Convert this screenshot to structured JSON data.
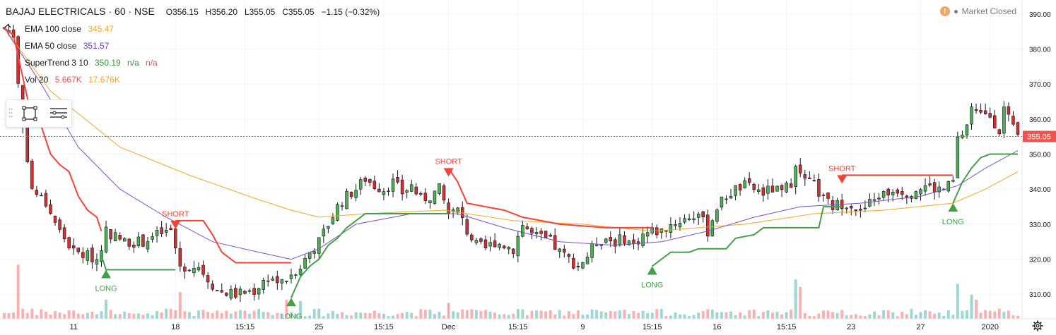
{
  "header": {
    "symbol": "BAJAJ ELECTRICALS · 60 · NSE",
    "open": "O356.15",
    "high": "H356.20",
    "low": "L355.05",
    "close": "C355.05",
    "change": "−1.15 (−0.32%)"
  },
  "indicators": [
    {
      "label": "EMA 100 close",
      "v1": "345.47",
      "v2": "",
      "v3": "",
      "c1": "#f5a623"
    },
    {
      "label": "EMA 50 close",
      "v1": "351.57",
      "v2": "",
      "v3": "",
      "c1": "#6a3fb5"
    },
    {
      "label": "SuperTrend 3 10",
      "v1": "350.19",
      "v2": "n/a",
      "v3": "n/a",
      "c1": "#2e9b2e"
    },
    {
      "label": "Vol 20",
      "v1": "5.667K",
      "v2": "17.676K",
      "v3": "",
      "c1": "#ef5350"
    }
  ],
  "market_status": {
    "warning_glyph": "!",
    "text": "Market Closed"
  },
  "icons": {
    "collapse": "chevron-up-icon",
    "rect": "rectangle-tool-icon",
    "settings": "object-tree-icon",
    "gear": "gear-icon"
  },
  "colors": {
    "up": "#26a69a",
    "down": "#ef5350",
    "candle_up": "#4caf50",
    "candle_down": "#d32f2f",
    "ema100": "#f5a623",
    "ema50": "#7b52c1",
    "st_long": "#43a047",
    "st_short": "#f44336",
    "price_tag": "#ef5350",
    "grid": "#f0f3fa"
  },
  "chart_data": {
    "type": "line",
    "title": "BAJAJ ELECTRICALS · 60 · NSE",
    "xlabel": "",
    "ylabel": "",
    "ylim": [
      303,
      394
    ],
    "y_ticks": [
      "390.00",
      "380.00",
      "370.00",
      "360.00",
      "350.00",
      "340.00",
      "330.00",
      "320.00",
      "310.00"
    ],
    "y_tick_values": [
      390,
      380,
      370,
      360,
      350,
      340,
      330,
      320,
      310
    ],
    "last_price_label": "355.05",
    "last_price": 355.05,
    "x_count": 220,
    "x_ticks": [
      {
        "i": 15,
        "label": "11"
      },
      {
        "i": 37,
        "label": "18"
      },
      {
        "i": 52,
        "label": "15:15"
      },
      {
        "i": 68,
        "label": "25"
      },
      {
        "i": 82,
        "label": "15:15"
      },
      {
        "i": 96,
        "label": "Dec"
      },
      {
        "i": 111,
        "label": "15:15"
      },
      {
        "i": 125,
        "label": "9"
      },
      {
        "i": 140,
        "label": "15:15"
      },
      {
        "i": 154,
        "label": "16"
      },
      {
        "i": 169,
        "label": "15:15"
      },
      {
        "i": 183,
        "label": "23"
      },
      {
        "i": 198,
        "label": "27"
      },
      {
        "i": 213,
        "label": "2020"
      }
    ],
    "close_path": [
      {
        "i": 0,
        "v": 386
      },
      {
        "i": 2,
        "v": 384
      },
      {
        "i": 4,
        "v": 358
      },
      {
        "i": 6,
        "v": 340
      },
      {
        "i": 9,
        "v": 336
      },
      {
        "i": 12,
        "v": 328
      },
      {
        "i": 15,
        "v": 322
      },
      {
        "i": 18,
        "v": 321
      },
      {
        "i": 20,
        "v": 320
      },
      {
        "i": 22,
        "v": 328
      },
      {
        "i": 26,
        "v": 325
      },
      {
        "i": 30,
        "v": 325
      },
      {
        "i": 33,
        "v": 327
      },
      {
        "i": 36,
        "v": 328
      },
      {
        "i": 38,
        "v": 318
      },
      {
        "i": 42,
        "v": 318
      },
      {
        "i": 46,
        "v": 311
      },
      {
        "i": 50,
        "v": 310
      },
      {
        "i": 54,
        "v": 311
      },
      {
        "i": 57,
        "v": 315
      },
      {
        "i": 60,
        "v": 313
      },
      {
        "i": 62,
        "v": 316
      },
      {
        "i": 64,
        "v": 318
      },
      {
        "i": 66,
        "v": 322
      },
      {
        "i": 68,
        "v": 325
      },
      {
        "i": 70,
        "v": 330
      },
      {
        "i": 72,
        "v": 335
      },
      {
        "i": 74,
        "v": 338
      },
      {
        "i": 76,
        "v": 340
      },
      {
        "i": 78,
        "v": 343
      },
      {
        "i": 80,
        "v": 341
      },
      {
        "i": 82,
        "v": 340
      },
      {
        "i": 84,
        "v": 342
      },
      {
        "i": 86,
        "v": 339
      },
      {
        "i": 88,
        "v": 341
      },
      {
        "i": 90,
        "v": 337
      },
      {
        "i": 92,
        "v": 338
      },
      {
        "i": 94,
        "v": 340
      },
      {
        "i": 96,
        "v": 333
      },
      {
        "i": 98,
        "v": 334
      },
      {
        "i": 100,
        "v": 328
      },
      {
        "i": 102,
        "v": 324
      },
      {
        "i": 104,
        "v": 323
      },
      {
        "i": 106,
        "v": 325
      },
      {
        "i": 108,
        "v": 324
      },
      {
        "i": 110,
        "v": 323
      },
      {
        "i": 112,
        "v": 330
      },
      {
        "i": 114,
        "v": 327
      },
      {
        "i": 116,
        "v": 326
      },
      {
        "i": 118,
        "v": 325
      },
      {
        "i": 120,
        "v": 322
      },
      {
        "i": 122,
        "v": 320
      },
      {
        "i": 124,
        "v": 318
      },
      {
        "i": 126,
        "v": 321
      },
      {
        "i": 128,
        "v": 325
      },
      {
        "i": 130,
        "v": 326
      },
      {
        "i": 132,
        "v": 325
      },
      {
        "i": 134,
        "v": 326
      },
      {
        "i": 136,
        "v": 324
      },
      {
        "i": 138,
        "v": 327
      },
      {
        "i": 140,
        "v": 328
      },
      {
        "i": 142,
        "v": 328
      },
      {
        "i": 144,
        "v": 330
      },
      {
        "i": 146,
        "v": 331
      },
      {
        "i": 148,
        "v": 332
      },
      {
        "i": 150,
        "v": 333
      },
      {
        "i": 152,
        "v": 328
      },
      {
        "i": 154,
        "v": 335
      },
      {
        "i": 156,
        "v": 338
      },
      {
        "i": 158,
        "v": 340
      },
      {
        "i": 160,
        "v": 341
      },
      {
        "i": 162,
        "v": 340
      },
      {
        "i": 164,
        "v": 339
      },
      {
        "i": 166,
        "v": 340
      },
      {
        "i": 168,
        "v": 339
      },
      {
        "i": 170,
        "v": 342
      },
      {
        "i": 171,
        "v": 348
      },
      {
        "i": 173,
        "v": 342
      },
      {
        "i": 175,
        "v": 341
      },
      {
        "i": 177,
        "v": 337
      },
      {
        "i": 179,
        "v": 335
      },
      {
        "i": 181,
        "v": 336
      },
      {
        "i": 183,
        "v": 336
      },
      {
        "i": 185,
        "v": 333
      },
      {
        "i": 187,
        "v": 336
      },
      {
        "i": 189,
        "v": 338
      },
      {
        "i": 191,
        "v": 339
      },
      {
        "i": 193,
        "v": 340
      },
      {
        "i": 195,
        "v": 339
      },
      {
        "i": 197,
        "v": 340
      },
      {
        "i": 199,
        "v": 341
      },
      {
        "i": 201,
        "v": 340
      },
      {
        "i": 203,
        "v": 340
      },
      {
        "i": 205,
        "v": 342
      },
      {
        "i": 206,
        "v": 354
      },
      {
        "i": 208,
        "v": 357
      },
      {
        "i": 209,
        "v": 362
      },
      {
        "i": 211,
        "v": 361
      },
      {
        "i": 213,
        "v": 361
      },
      {
        "i": 215,
        "v": 357
      },
      {
        "i": 216,
        "v": 363
      },
      {
        "i": 218,
        "v": 357
      },
      {
        "i": 219,
        "v": 355
      }
    ],
    "series": [
      {
        "name": "EMA 100 close",
        "key": "ema100",
        "points": [
          {
            "i": 0,
            "v": 386
          },
          {
            "i": 10,
            "v": 368
          },
          {
            "i": 25,
            "v": 352
          },
          {
            "i": 40,
            "v": 344
          },
          {
            "i": 55,
            "v": 337
          },
          {
            "i": 62,
            "v": 334
          },
          {
            "i": 68,
            "v": 332
          },
          {
            "i": 78,
            "v": 333
          },
          {
            "i": 95,
            "v": 334
          },
          {
            "i": 110,
            "v": 331
          },
          {
            "i": 125,
            "v": 330
          },
          {
            "i": 140,
            "v": 328
          },
          {
            "i": 150,
            "v": 329
          },
          {
            "i": 160,
            "v": 330
          },
          {
            "i": 175,
            "v": 333
          },
          {
            "i": 190,
            "v": 334
          },
          {
            "i": 205,
            "v": 336
          },
          {
            "i": 212,
            "v": 340
          },
          {
            "i": 219,
            "v": 345
          }
        ]
      },
      {
        "name": "EMA 50 close",
        "key": "ema50",
        "points": [
          {
            "i": 0,
            "v": 386
          },
          {
            "i": 8,
            "v": 370
          },
          {
            "i": 16,
            "v": 352
          },
          {
            "i": 25,
            "v": 340
          },
          {
            "i": 35,
            "v": 332
          },
          {
            "i": 45,
            "v": 325
          },
          {
            "i": 55,
            "v": 322
          },
          {
            "i": 62,
            "v": 320
          },
          {
            "i": 68,
            "v": 323
          },
          {
            "i": 76,
            "v": 330
          },
          {
            "i": 88,
            "v": 333
          },
          {
            "i": 98,
            "v": 333
          },
          {
            "i": 108,
            "v": 329
          },
          {
            "i": 120,
            "v": 325
          },
          {
            "i": 132,
            "v": 324
          },
          {
            "i": 142,
            "v": 325
          },
          {
            "i": 152,
            "v": 328
          },
          {
            "i": 162,
            "v": 332
          },
          {
            "i": 172,
            "v": 335
          },
          {
            "i": 185,
            "v": 336
          },
          {
            "i": 198,
            "v": 338
          },
          {
            "i": 206,
            "v": 341
          },
          {
            "i": 212,
            "v": 346
          },
          {
            "i": 219,
            "v": 351
          }
        ]
      },
      {
        "name": "SuperTrend short",
        "key": "st_short",
        "segments": [
          [
            {
              "i": 0,
              "v": 386
            },
            {
              "i": 2,
              "v": 384
            },
            {
              "i": 4,
              "v": 372
            },
            {
              "i": 6,
              "v": 360
            },
            {
              "i": 8,
              "v": 358
            },
            {
              "i": 10,
              "v": 350
            },
            {
              "i": 12,
              "v": 347
            },
            {
              "i": 14,
              "v": 345
            },
            {
              "i": 16,
              "v": 338
            },
            {
              "i": 18,
              "v": 334
            },
            {
              "i": 20,
              "v": 332
            },
            {
              "i": 21,
              "v": 328
            }
          ],
          [
            {
              "i": 37,
              "v": 331
            },
            {
              "i": 43,
              "v": 331
            },
            {
              "i": 45,
              "v": 327
            },
            {
              "i": 47,
              "v": 322
            },
            {
              "i": 50,
              "v": 319
            },
            {
              "i": 62,
              "v": 319
            }
          ],
          [
            {
              "i": 96,
              "v": 346
            },
            {
              "i": 98,
              "v": 342
            },
            {
              "i": 100,
              "v": 336
            },
            {
              "i": 104,
              "v": 335
            },
            {
              "i": 108,
              "v": 334
            },
            {
              "i": 112,
              "v": 332
            },
            {
              "i": 116,
              "v": 331
            },
            {
              "i": 120,
              "v": 330
            },
            {
              "i": 130,
              "v": 329
            },
            {
              "i": 140,
              "v": 329
            }
          ],
          [
            {
              "i": 181,
              "v": 344
            },
            {
              "i": 205,
              "v": 344
            }
          ]
        ]
      },
      {
        "name": "SuperTrend long",
        "key": "st_long",
        "segments": [
          [
            {
              "i": 21,
              "v": 321
            },
            {
              "i": 22,
              "v": 317
            },
            {
              "i": 37,
              "v": 317
            }
          ],
          [
            {
              "i": 62,
              "v": 309
            },
            {
              "i": 64,
              "v": 315
            },
            {
              "i": 66,
              "v": 318
            },
            {
              "i": 68,
              "v": 320
            },
            {
              "i": 70,
              "v": 324
            },
            {
              "i": 72,
              "v": 326
            },
            {
              "i": 74,
              "v": 329
            },
            {
              "i": 76,
              "v": 331
            },
            {
              "i": 78,
              "v": 333
            },
            {
              "i": 96,
              "v": 333
            }
          ],
          [
            {
              "i": 140,
              "v": 318
            },
            {
              "i": 142,
              "v": 320
            },
            {
              "i": 144,
              "v": 322
            },
            {
              "i": 148,
              "v": 322
            },
            {
              "i": 150,
              "v": 323
            },
            {
              "i": 156,
              "v": 323
            },
            {
              "i": 158,
              "v": 326
            },
            {
              "i": 162,
              "v": 327
            },
            {
              "i": 164,
              "v": 329
            },
            {
              "i": 176,
              "v": 329
            },
            {
              "i": 177,
              "v": 335
            },
            {
              "i": 181,
              "v": 335
            }
          ],
          [
            {
              "i": 205,
              "v": 336
            },
            {
              "i": 207,
              "v": 342
            },
            {
              "i": 209,
              "v": 346
            },
            {
              "i": 211,
              "v": 349
            },
            {
              "i": 213,
              "v": 350
            },
            {
              "i": 219,
              "v": 350
            }
          ]
        ]
      }
    ],
    "signals": [
      {
        "type": "long",
        "label": "LONG",
        "i": 22,
        "v": 317
      },
      {
        "type": "short",
        "label": "SHORT",
        "i": 37,
        "v": 331
      },
      {
        "type": "long",
        "label": "LONG",
        "i": 62,
        "v": 309
      },
      {
        "type": "short",
        "label": "SHORT",
        "i": 96,
        "v": 346
      },
      {
        "type": "long",
        "label": "LONG",
        "i": 140,
        "v": 318
      },
      {
        "type": "short",
        "label": "SHORT",
        "i": 181,
        "v": 344
      },
      {
        "type": "long",
        "label": "LONG",
        "i": 205,
        "v": 336
      }
    ],
    "volume_spikes": [
      {
        "i": 3,
        "r": 0.85
      },
      {
        "i": 22,
        "r": 0.3
      },
      {
        "i": 38,
        "r": 0.42
      },
      {
        "i": 61,
        "r": 0.3
      },
      {
        "i": 64,
        "r": 0.28
      },
      {
        "i": 96,
        "r": 0.25
      },
      {
        "i": 171,
        "r": 0.62
      },
      {
        "i": 172,
        "r": 0.5
      },
      {
        "i": 206,
        "r": 0.55
      },
      {
        "i": 209,
        "r": 0.38
      },
      {
        "i": 210,
        "r": 0.3
      }
    ]
  }
}
